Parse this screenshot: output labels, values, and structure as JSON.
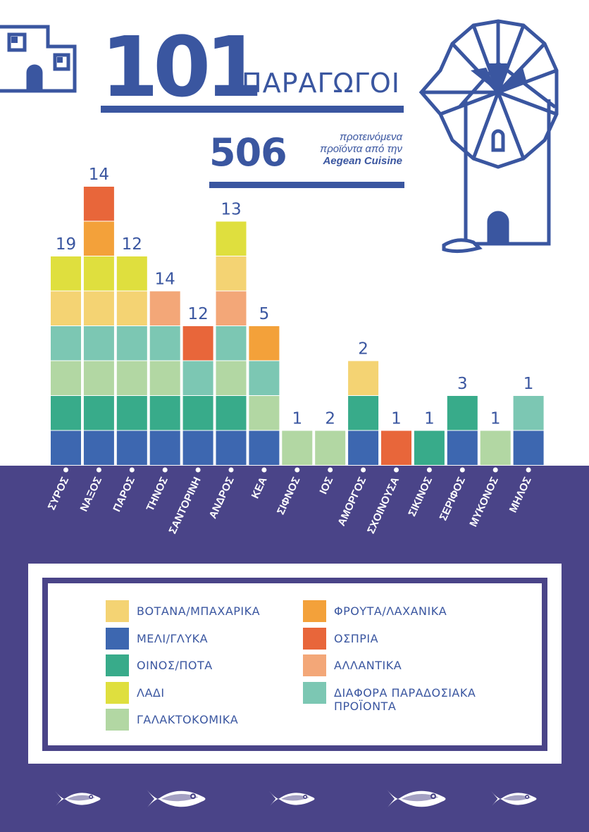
{
  "header": {
    "producers_count": "101",
    "producers_label": "ΠΑΡΑΓΩΓΟΙ",
    "products_count": "506",
    "products_text_line1": "προτεινόμενα",
    "products_text_line2": "προϊόντα από την",
    "products_text_brand": "Aegean Cuisine"
  },
  "colors": {
    "navy": "#3a56a0",
    "band": "#4a4488",
    "ΒΟΤΑΝΑ/ΜΠΑΧΑΡΙΚΑ": "#f4d373",
    "ΜΕΛΙ/ΓΛΥΚΑ": "#3d67b0",
    "ΟΙΝΟΣ/ΠΟΤΑ": "#38ab8a",
    "ΛΑΔΙ": "#dfdf3e",
    "ΓΑΛΑΚΤΟΚΟΜΙΚΑ": "#b2d7a3",
    "ΦΡΟΥΤΑ/ΛΑΧΑΝΙΚΑ": "#f3a13a",
    "ΟΣΠΡΙΑ": "#e8663a",
    "ΑΛΛΑΝΤΙΚΑ": "#f3a778",
    "ΔΙΑΦΟΡΑ ΠΑΡΑΔΟΣΙΑΚΑ ΠΡΟΪΟΝΤΑ": "#7cc7b3"
  },
  "chart_data": {
    "type": "bar",
    "stacked": true,
    "title": "",
    "xlabel": "",
    "ylabel": "",
    "note": "Stacked bars; the top number of each bar is the printed count of producers per island. Segments are colour-coded product categories.",
    "categories": [
      "ΣΥΡΟΣ",
      "ΝΑΞΟΣ",
      "ΠΑΡΟΣ",
      "ΤΗΝΟΣ",
      "ΣΑΝΤΟΡΙΝΗ",
      "ΑΝΔΡΟΣ",
      "ΚΕΑ",
      "ΣΙΦΝΟΣ",
      "ΙΟΣ",
      "ΑΜΟΡΓΟΣ",
      "ΣΧΟΙΝΟΥΣΑ",
      "ΣΙΚΙΝΟΣ",
      "ΣΕΡΙΦΟΣ",
      "ΜΥΚΟΝΟΣ",
      "ΜΗΛΟΣ"
    ],
    "values": [
      19,
      14,
      12,
      14,
      12,
      13,
      5,
      1,
      2,
      2,
      1,
      1,
      3,
      1,
      1
    ],
    "stacks": [
      [
        "ΜΕΛΙ/ΓΛΥΚΑ",
        "ΟΙΝΟΣ/ΠΟΤΑ",
        "ΓΑΛΑΚΤΟΚΟΜΙΚΑ",
        "ΔΙΑΦΟΡΑ ΠΑΡΑΔΟΣΙΑΚΑ ΠΡΟΪΟΝΤΑ",
        "ΒΟΤΑΝΑ/ΜΠΑΧΑΡΙΚΑ",
        "ΛΑΔΙ"
      ],
      [
        "ΜΕΛΙ/ΓΛΥΚΑ",
        "ΟΙΝΟΣ/ΠΟΤΑ",
        "ΓΑΛΑΚΤΟΚΟΜΙΚΑ",
        "ΔΙΑΦΟΡΑ ΠΑΡΑΔΟΣΙΑΚΑ ΠΡΟΪΟΝΤΑ",
        "ΒΟΤΑΝΑ/ΜΠΑΧΑΡΙΚΑ",
        "ΛΑΔΙ",
        "ΦΡΟΥΤΑ/ΛΑΧΑΝΙΚΑ",
        "ΟΣΠΡΙΑ"
      ],
      [
        "ΜΕΛΙ/ΓΛΥΚΑ",
        "ΟΙΝΟΣ/ΠΟΤΑ",
        "ΓΑΛΑΚΤΟΚΟΜΙΚΑ",
        "ΔΙΑΦΟΡΑ ΠΑΡΑΔΟΣΙΑΚΑ ΠΡΟΪΟΝΤΑ",
        "ΒΟΤΑΝΑ/ΜΠΑΧΑΡΙΚΑ",
        "ΛΑΔΙ"
      ],
      [
        "ΜΕΛΙ/ΓΛΥΚΑ",
        "ΟΙΝΟΣ/ΠΟΤΑ",
        "ΓΑΛΑΚΤΟΚΟΜΙΚΑ",
        "ΔΙΑΦΟΡΑ ΠΑΡΑΔΟΣΙΑΚΑ ΠΡΟΪΟΝΤΑ",
        "ΑΛΛΑΝΤΙΚΑ"
      ],
      [
        "ΜΕΛΙ/ΓΛΥΚΑ",
        "ΟΙΝΟΣ/ΠΟΤΑ",
        "ΔΙΑΦΟΡΑ ΠΑΡΑΔΟΣΙΑΚΑ ΠΡΟΪΟΝΤΑ",
        "ΟΣΠΡΙΑ"
      ],
      [
        "ΜΕΛΙ/ΓΛΥΚΑ",
        "ΟΙΝΟΣ/ΠΟΤΑ",
        "ΓΑΛΑΚΤΟΚΟΜΙΚΑ",
        "ΔΙΑΦΟΡΑ ΠΑΡΑΔΟΣΙΑΚΑ ΠΡΟΪΟΝΤΑ",
        "ΑΛΛΑΝΤΙΚΑ",
        "ΒΟΤΑΝΑ/ΜΠΑΧΑΡΙΚΑ",
        "ΛΑΔΙ"
      ],
      [
        "ΜΕΛΙ/ΓΛΥΚΑ",
        "ΓΑΛΑΚΤΟΚΟΜΙΚΑ",
        "ΔΙΑΦΟΡΑ ΠΑΡΑΔΟΣΙΑΚΑ ΠΡΟΪΟΝΤΑ",
        "ΦΡΟΥΤΑ/ΛΑΧΑΝΙΚΑ"
      ],
      [
        "ΓΑΛΑΚΤΟΚΟΜΙΚΑ"
      ],
      [
        "ΓΑΛΑΚΤΟΚΟΜΙΚΑ"
      ],
      [
        "ΜΕΛΙ/ΓΛΥΚΑ",
        "ΟΙΝΟΣ/ΠΟΤΑ",
        "ΒΟΤΑΝΑ/ΜΠΑΧΑΡΙΚΑ"
      ],
      [
        "ΟΣΠΡΙΑ"
      ],
      [
        "ΟΙΝΟΣ/ΠΟΤΑ"
      ],
      [
        "ΜΕΛΙ/ΓΛΥΚΑ",
        "ΟΙΝΟΣ/ΠΟΤΑ"
      ],
      [
        "ΓΑΛΑΚΤΟΚΟΜΙΚΑ"
      ],
      [
        "ΜΕΛΙ/ΓΛΥΚΑ",
        "ΔΙΑΦΟΡΑ ΠΑΡΑΔΟΣΙΑΚΑ ΠΡΟΪΟΝΤΑ"
      ]
    ]
  },
  "legend": {
    "left": [
      "ΒΟΤΑΝΑ/ΜΠΑΧΑΡΙΚΑ",
      "ΜΕΛΙ/ΓΛΥΚΑ",
      "ΟΙΝΟΣ/ΠΟΤΑ",
      "ΛΑΔΙ",
      "ΓΑΛΑΚΤΟΚΟΜΙΚΑ"
    ],
    "right": [
      "ΦΡΟΥΤΑ/ΛΑΧΑΝΙΚΑ",
      "ΟΣΠΡΙΑ",
      "ΑΛΛΑΝΤΙΚΑ",
      "ΔΙΑΦΟΡΑ ΠΑΡΑΔΟΣΙΑΚΑ ΠΡΟΪΟΝΤΑ"
    ]
  },
  "icons": [
    "house-icon",
    "windmill-icon",
    "fish-icon"
  ]
}
